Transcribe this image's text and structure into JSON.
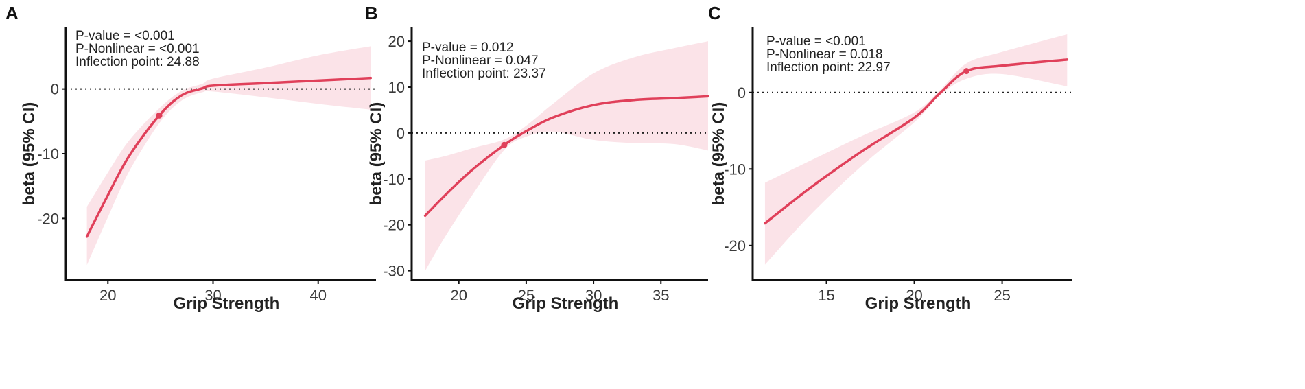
{
  "colors": {
    "line": "#e0405a",
    "band": "#fbe3e8",
    "axis": "#111111",
    "reference": "#222222"
  },
  "chart_data": [
    {
      "panel": "A",
      "type": "line",
      "xlabel": "Grip Strength",
      "ylabel": "beta (95% CI)",
      "xlim": [
        16,
        45.5
      ],
      "ylim": [
        -29.5,
        9.5
      ],
      "xticks": [
        20,
        30,
        40
      ],
      "yticks": [
        -20,
        -10,
        0
      ],
      "annotations": [
        "P-value = <0.001",
        "P-Nonlinear = <0.001",
        "Inflection point: 24.88"
      ],
      "inflection_point": {
        "x": 24.88,
        "y": -4.1
      },
      "reference_line_y": 0,
      "series": [
        {
          "x": [
            18,
            20,
            22,
            24.88,
            27,
            29,
            30,
            35,
            40,
            45
          ],
          "y": [
            -22.8,
            -16.4,
            -10.4,
            -4.1,
            -1.0,
            0.1,
            0.5,
            0.9,
            1.3,
            1.7
          ],
          "lower": [
            -27.2,
            -19.8,
            -12.8,
            -5.3,
            -1.8,
            -0.5,
            -0.4,
            -1.3,
            -2.3,
            -3.2
          ],
          "upper": [
            -18.2,
            -12.9,
            -8.0,
            -3.0,
            -0.3,
            0.8,
            1.6,
            3.3,
            5.2,
            6.6
          ]
        }
      ]
    },
    {
      "panel": "B",
      "type": "line",
      "xlabel": "Grip Strength",
      "ylabel": "beta (95% CI)",
      "xlim": [
        16.5,
        38.5
      ],
      "ylim": [
        -32,
        23
      ],
      "xticks": [
        20,
        25,
        30,
        35
      ],
      "yticks": [
        -30,
        -20,
        -10,
        0,
        10,
        20
      ],
      "annotations": [
        "P-value = 0.012",
        "P-Nonlinear = 0.047",
        "Inflection point: 23.37"
      ],
      "inflection_point": {
        "x": 23.37,
        "y": -2.6
      },
      "reference_line_y": 0,
      "series": [
        {
          "x": [
            17.5,
            19,
            21,
            23.37,
            25,
            27,
            30,
            33,
            36,
            38.5
          ],
          "y": [
            -18.0,
            -13.5,
            -8.0,
            -2.6,
            0.4,
            3.4,
            6.1,
            7.2,
            7.6,
            8.0
          ],
          "lower": [
            -30.0,
            -22.5,
            -13.5,
            -3.7,
            -0.8,
            0.3,
            -1.5,
            -2.2,
            -2.4,
            -3.8
          ],
          "upper": [
            -6.0,
            -5.0,
            -3.3,
            -1.4,
            1.6,
            6.4,
            13.0,
            16.5,
            18.5,
            20.0
          ]
        }
      ]
    },
    {
      "panel": "C",
      "type": "line",
      "xlabel": "Grip Strength",
      "ylabel": "beta (95% CI)",
      "xlim": [
        10.8,
        29
      ],
      "ylim": [
        -24.5,
        8.5
      ],
      "xticks": [
        15,
        20,
        25
      ],
      "yticks": [
        -20,
        -10,
        0
      ],
      "annotations": [
        "P-value = <0.001",
        "P-Nonlinear = 0.018",
        "Inflection point: 22.97"
      ],
      "inflection_point": {
        "x": 22.97,
        "y": 2.8
      },
      "reference_line_y": 0,
      "series": [
        {
          "x": [
            11.5,
            14,
            17,
            20,
            21.5,
            22.97,
            25,
            28.7
          ],
          "y": [
            -17.1,
            -12.6,
            -7.7,
            -3.3,
            0.0,
            2.8,
            3.5,
            4.3
          ],
          "lower": [
            -22.5,
            -16.2,
            -9.6,
            -3.9,
            -0.3,
            1.8,
            2.4,
            0.8
          ],
          "upper": [
            -11.8,
            -9.0,
            -5.7,
            -2.6,
            0.4,
            3.8,
            5.3,
            7.6
          ]
        }
      ]
    }
  ]
}
